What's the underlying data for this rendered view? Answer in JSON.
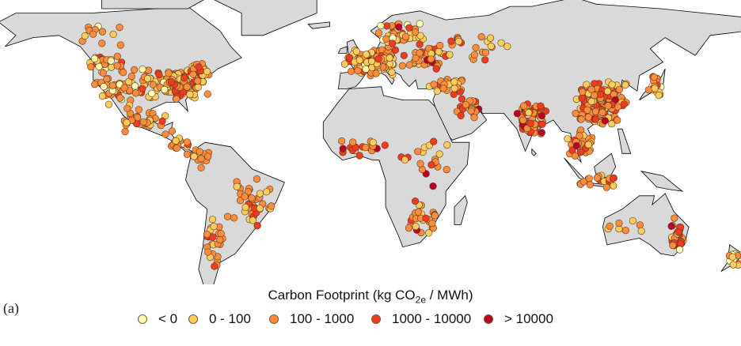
{
  "panel_label": "(a)",
  "legend": {
    "title_prefix": "Carbon Footprint (kg CO",
    "title_sub": "2e",
    "title_suffix": " / MWh)",
    "items": [
      {
        "label": "< 0",
        "color": "#ffffb2"
      },
      {
        "label": "0 - 100",
        "color": "#fecc5c"
      },
      {
        "label": "100 - 1000",
        "color": "#fd8d3c"
      },
      {
        "label": "1000 - 10000",
        "color": "#f03b20"
      },
      {
        "label": "> 10000",
        "color": "#bd0026"
      }
    ]
  },
  "colors": {
    "land": "#d9d9d9",
    "border": "#000000",
    "ocean": "#ffffff"
  }
}
